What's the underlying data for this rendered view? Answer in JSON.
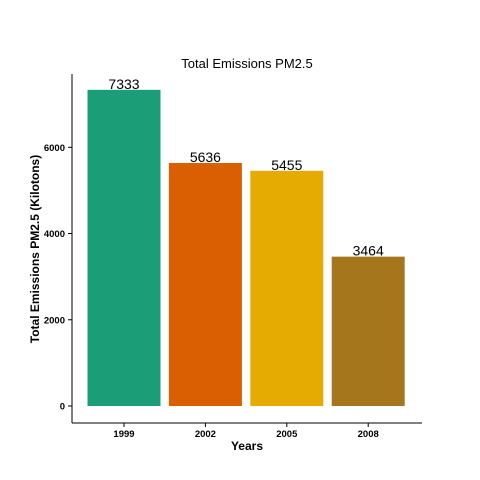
{
  "chart_data": {
    "type": "bar",
    "title": "Total Emissions PM2.5",
    "xlabel": "Years",
    "ylabel": "Total Emissions PM2.5 (Kilotons)",
    "categories": [
      "1999",
      "2002",
      "2005",
      "2008"
    ],
    "values": [
      7333,
      5636,
      5455,
      3464
    ],
    "data_labels": [
      "7333",
      "5636",
      "5455",
      "3464"
    ],
    "colors": [
      "#1b9e77",
      "#d95f02",
      "#e6ab02",
      "#a6761d"
    ],
    "ylim": [
      0,
      7700
    ],
    "yticks": [
      0,
      2000,
      4000,
      6000
    ],
    "ytick_labels": [
      "0",
      "2000",
      "4000",
      "6000"
    ],
    "grid": false,
    "legend": "none"
  }
}
